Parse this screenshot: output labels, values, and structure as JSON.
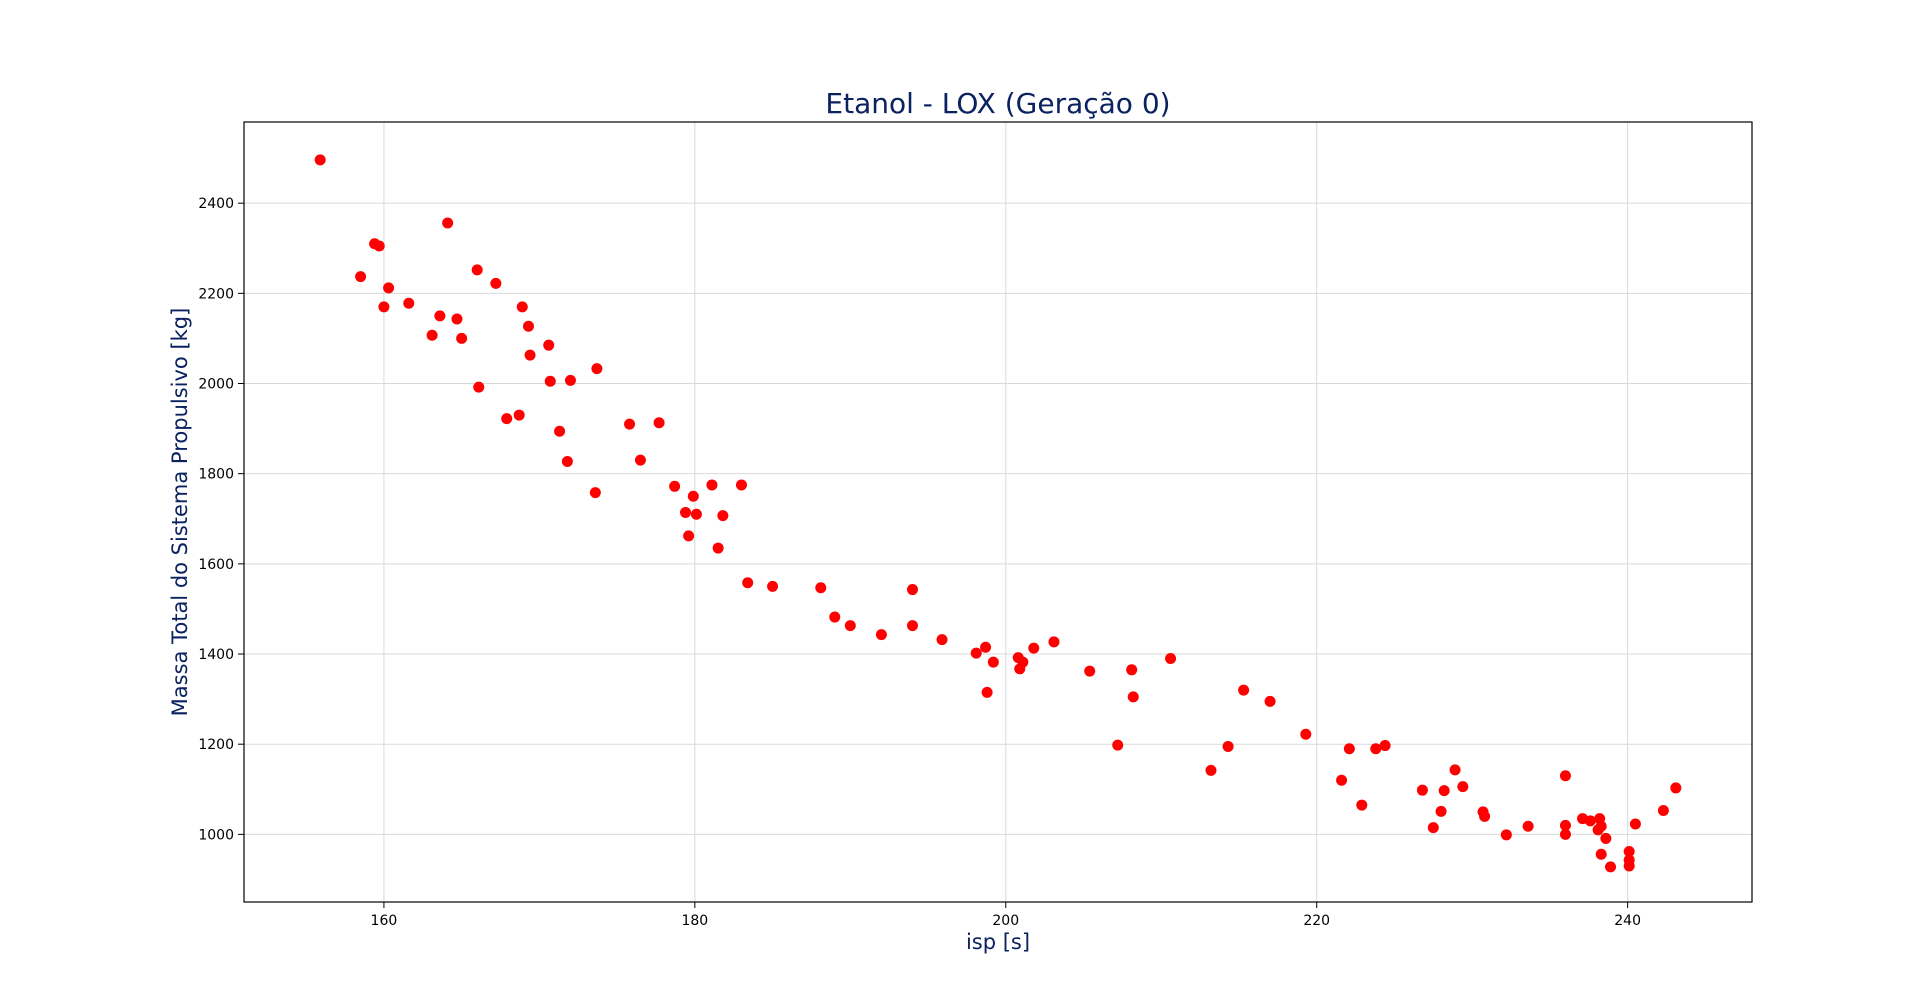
{
  "chart_data": {
    "type": "scatter",
    "title": "Etanol - LOX (Geração 0)",
    "xlabel": "isp [s]",
    "ylabel": "Massa Total do Sistema Propulsivo [kg]",
    "xlim": [
      151,
      248
    ],
    "ylim": [
      850,
      2580
    ],
    "xticks": [
      160,
      180,
      200,
      220,
      240
    ],
    "yticks": [
      1000,
      1200,
      1400,
      1600,
      1800,
      2000,
      2200,
      2400
    ],
    "grid": true,
    "marker_color": "#ff0000",
    "points": [
      [
        155.9,
        2496
      ],
      [
        158.5,
        2237
      ],
      [
        159.4,
        2310
      ],
      [
        159.7,
        2305
      ],
      [
        160.0,
        2170
      ],
      [
        160.3,
        2212
      ],
      [
        161.6,
        2178
      ],
      [
        163.1,
        2107
      ],
      [
        163.6,
        2150
      ],
      [
        164.1,
        2356
      ],
      [
        164.7,
        2143
      ],
      [
        165.0,
        2100
      ],
      [
        166.0,
        2252
      ],
      [
        166.1,
        1992
      ],
      [
        167.2,
        2222
      ],
      [
        167.9,
        1922
      ],
      [
        168.7,
        1930
      ],
      [
        168.9,
        2170
      ],
      [
        169.3,
        2127
      ],
      [
        169.4,
        2063
      ],
      [
        170.6,
        2085
      ],
      [
        170.7,
        2005
      ],
      [
        171.3,
        1894
      ],
      [
        171.8,
        1827
      ],
      [
        172.0,
        2007
      ],
      [
        173.6,
        1758
      ],
      [
        173.7,
        2033
      ],
      [
        175.8,
        1910
      ],
      [
        176.5,
        1830
      ],
      [
        177.7,
        1913
      ],
      [
        178.7,
        1772
      ],
      [
        179.4,
        1714
      ],
      [
        179.6,
        1662
      ],
      [
        179.9,
        1750
      ],
      [
        180.1,
        1710
      ],
      [
        181.1,
        1775
      ],
      [
        181.5,
        1635
      ],
      [
        181.8,
        1707
      ],
      [
        183.0,
        1775
      ],
      [
        183.4,
        1558
      ],
      [
        185.0,
        1550
      ],
      [
        188.1,
        1547
      ],
      [
        189.0,
        1482
      ],
      [
        190.0,
        1463
      ],
      [
        192.0,
        1443
      ],
      [
        194.0,
        1543
      ],
      [
        194.0,
        1463
      ],
      [
        195.9,
        1432
      ],
      [
        198.1,
        1402
      ],
      [
        198.7,
        1415
      ],
      [
        198.8,
        1315
      ],
      [
        199.2,
        1382
      ],
      [
        200.8,
        1392
      ],
      [
        200.9,
        1367
      ],
      [
        201.1,
        1382
      ],
      [
        201.8,
        1413
      ],
      [
        203.1,
        1427
      ],
      [
        205.4,
        1362
      ],
      [
        207.2,
        1198
      ],
      [
        208.1,
        1365
      ],
      [
        208.2,
        1305
      ],
      [
        210.6,
        1390
      ],
      [
        213.2,
        1142
      ],
      [
        214.3,
        1195
      ],
      [
        215.3,
        1320
      ],
      [
        217.0,
        1295
      ],
      [
        219.3,
        1222
      ],
      [
        221.6,
        1120
      ],
      [
        222.1,
        1190
      ],
      [
        222.9,
        1065
      ],
      [
        223.8,
        1190
      ],
      [
        224.4,
        1197
      ],
      [
        226.8,
        1098
      ],
      [
        227.5,
        1015
      ],
      [
        228.0,
        1051
      ],
      [
        228.2,
        1097
      ],
      [
        228.9,
        1143
      ],
      [
        229.4,
        1106
      ],
      [
        230.7,
        1050
      ],
      [
        230.8,
        1040
      ],
      [
        232.2,
        999
      ],
      [
        233.6,
        1018
      ],
      [
        236.0,
        1130
      ],
      [
        236.0,
        1020
      ],
      [
        236.0,
        1000
      ],
      [
        237.1,
        1035
      ],
      [
        237.6,
        1030
      ],
      [
        238.1,
        1010
      ],
      [
        238.2,
        1035
      ],
      [
        238.3,
        1018
      ],
      [
        238.3,
        956
      ],
      [
        238.6,
        991
      ],
      [
        238.9,
        928
      ],
      [
        240.1,
        962
      ],
      [
        240.1,
        943
      ],
      [
        240.1,
        930
      ],
      [
        240.5,
        1023
      ],
      [
        242.3,
        1053
      ],
      [
        243.1,
        1103
      ]
    ]
  }
}
